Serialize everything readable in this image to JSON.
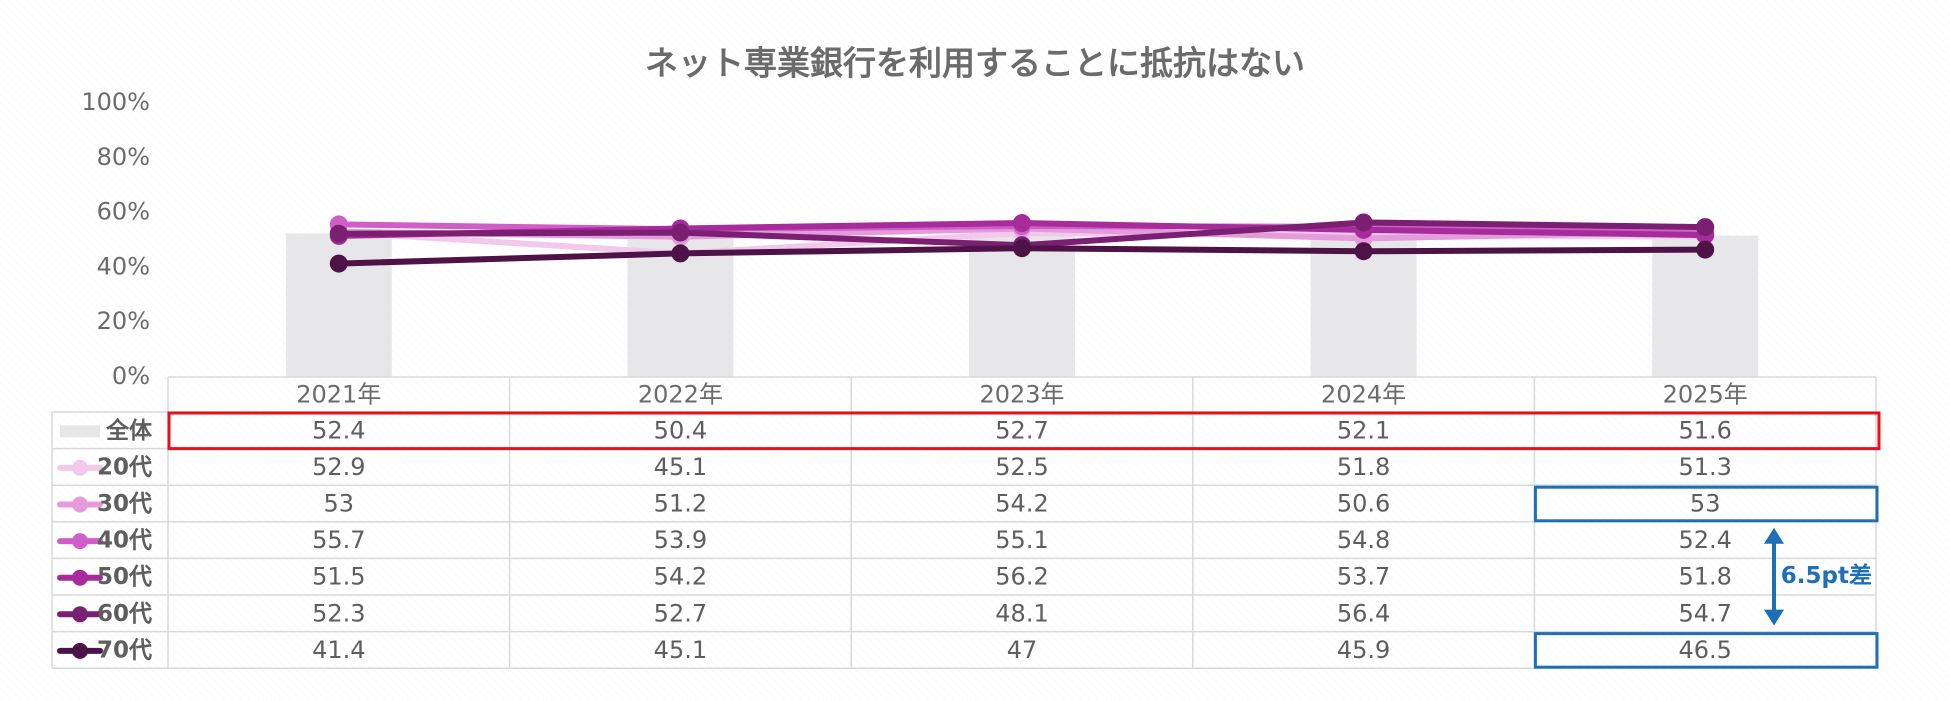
{
  "chart_data": {
    "type": "bar",
    "title": "ネット専業銀行を利用することに抵抗はない",
    "categories": [
      "2021年",
      "2022年",
      "2023年",
      "2024年",
      "2025年"
    ],
    "y_ticks": [
      "0%",
      "20%",
      "40%",
      "60%",
      "80%",
      "100%"
    ],
    "ylim": [
      0,
      100
    ],
    "grid": false,
    "legend": "data-table",
    "bar_series": {
      "name": "全体",
      "values": [
        52.4,
        50.4,
        52.7,
        52.1,
        51.6
      ],
      "color": "#e7e7e9"
    },
    "series": [
      {
        "name": "20代",
        "values": [
          52.9,
          45.1,
          52.5,
          51.8,
          51.3
        ],
        "color": "#f2c9ec"
      },
      {
        "name": "30代",
        "values": [
          53,
          51.2,
          54.2,
          50.6,
          53
        ],
        "color": "#e49bdc"
      },
      {
        "name": "40代",
        "values": [
          55.7,
          53.9,
          55.1,
          54.8,
          52.4
        ],
        "color": "#cf5fc6"
      },
      {
        "name": "50代",
        "values": [
          51.5,
          54.2,
          56.2,
          53.7,
          51.8
        ],
        "color": "#a52c9a"
      },
      {
        "name": "60代",
        "values": [
          52.3,
          52.7,
          48.1,
          56.4,
          54.7
        ],
        "color": "#7b1f72"
      },
      {
        "name": "70代",
        "values": [
          41.4,
          45.1,
          47,
          45.9,
          46.5
        ],
        "color": "#4e1346"
      }
    ],
    "annotations": [
      {
        "text": "6.5pt差",
        "color": "#1f6fb6"
      }
    ],
    "highlight_colors": {
      "overall_row": "#e8101a",
      "compare_cells": "#1f6fb6"
    }
  }
}
